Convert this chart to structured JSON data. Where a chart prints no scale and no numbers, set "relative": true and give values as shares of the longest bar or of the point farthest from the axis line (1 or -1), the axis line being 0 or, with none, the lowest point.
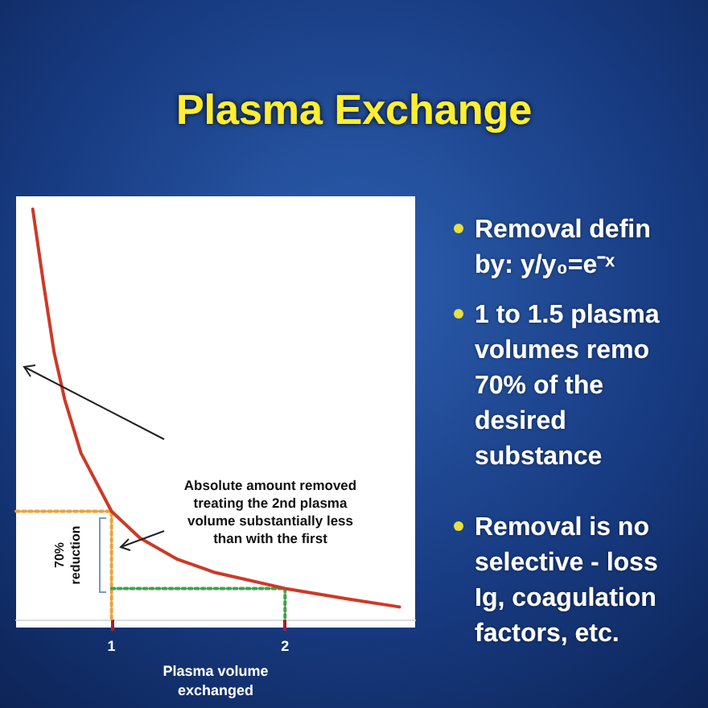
{
  "chart_data": {
    "type": "line",
    "title": "Plasma Exchange",
    "xlabel": "Plasma volume\nexchanged",
    "relative": true,
    "xlim": [
      0.45,
      2.75
    ],
    "xticks": [
      1,
      2
    ],
    "grid": false,
    "marker": "none",
    "series": [
      {
        "x": [
          0.546,
          0.608,
          0.669,
          0.731,
          0.824,
          1.0,
          1.164,
          1.38,
          1.595,
          2.0,
          2.37,
          2.66
        ],
        "values": [
          1.0,
          0.819,
          0.651,
          0.535,
          0.406,
          0.264,
          0.199,
          0.147,
          0.115,
          0.076,
          0.05,
          0.031
        ],
        "color": "#cc3a28",
        "line_style": "solid"
      },
      {
        "x": [
          0.45,
          1.0,
          1.0
        ],
        "values": [
          0.264,
          0.264,
          0
        ],
        "color": "#e8a33a",
        "line_style": "dotted"
      },
      {
        "x": [
          1.0,
          2.0,
          2.0
        ],
        "values": [
          0.076,
          0.076,
          0
        ],
        "color": "#3fa34d",
        "line_style": "dotted"
      }
    ],
    "annotations": [
      "Absolute amount removed\ntreating the 2nd plasma\nvolume substantially less\nthan with the first",
      "70%\nreduction",
      "Removal defin\nby: y/y₀=e⁻ˣ",
      "1 to 1.5 plasma\nvolumes remo\n70% of the\ndesired\nsubstance",
      "Removal is no\nselective - loss\nIg, coagulation\nfactors, etc."
    ]
  }
}
